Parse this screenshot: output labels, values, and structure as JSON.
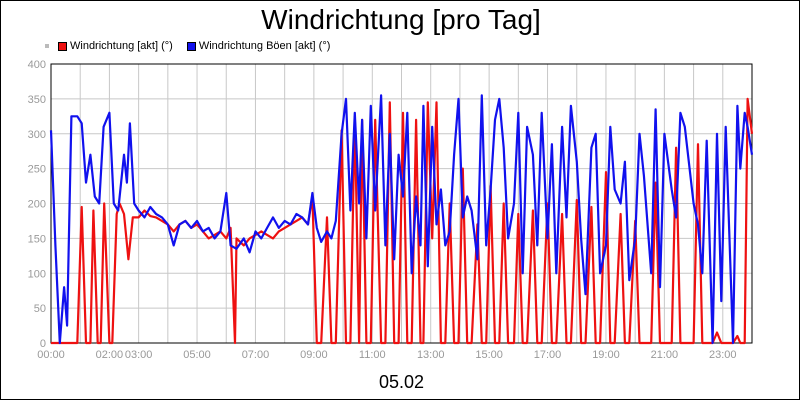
{
  "title": "Windrichtung [pro Tag]",
  "date_label": "05.02",
  "legend": [
    {
      "label": "Windrichtung [akt] (°)",
      "color": "#ee1111"
    },
    {
      "label": "Windrichtung Böen [akt] (°)",
      "color": "#1111ee"
    }
  ],
  "chart_data": {
    "type": "line",
    "title": "Windrichtung [pro Tag]",
    "xlabel": "05.02",
    "ylabel": "",
    "xlim": [
      0,
      24
    ],
    "ylim": [
      0,
      400
    ],
    "x_unit": "hours",
    "grid": true,
    "legend_position": "top-left",
    "y_ticks": [
      0,
      50,
      100,
      150,
      200,
      250,
      300,
      350,
      400
    ],
    "x_ticks": [
      "00:00",
      "02:00",
      "03:00",
      "05:00",
      "07:00",
      "09:00",
      "11:00",
      "13:00",
      "15:00",
      "17:00",
      "19:00",
      "21:00",
      "23:00"
    ],
    "x_tick_hours": [
      0,
      2,
      3,
      5,
      7,
      9,
      11,
      13,
      15,
      17,
      19,
      21,
      23
    ],
    "series": [
      {
        "name": "Windrichtung [akt] (°)",
        "color": "#ee1111",
        "points": [
          [
            0,
            0
          ],
          [
            0.9,
            0
          ],
          [
            1.05,
            195
          ],
          [
            1.2,
            0
          ],
          [
            1.35,
            0
          ],
          [
            1.45,
            190
          ],
          [
            1.6,
            0
          ],
          [
            1.7,
            0
          ],
          [
            1.82,
            200
          ],
          [
            2.0,
            0
          ],
          [
            2.1,
            0
          ],
          [
            2.25,
            185
          ],
          [
            2.35,
            200
          ],
          [
            2.5,
            185
          ],
          [
            2.65,
            120
          ],
          [
            2.8,
            180
          ],
          [
            3.0,
            180
          ],
          [
            3.2,
            190
          ],
          [
            3.4,
            182
          ],
          [
            3.6,
            180
          ],
          [
            3.8,
            175
          ],
          [
            4.0,
            170
          ],
          [
            4.2,
            160
          ],
          [
            4.4,
            170
          ],
          [
            4.6,
            175
          ],
          [
            4.8,
            165
          ],
          [
            5.0,
            170
          ],
          [
            5.2,
            160
          ],
          [
            5.4,
            150
          ],
          [
            5.6,
            155
          ],
          [
            5.8,
            160
          ],
          [
            6.0,
            150
          ],
          [
            6.15,
            165
          ],
          [
            6.3,
            0
          ],
          [
            6.35,
            150
          ],
          [
            6.6,
            140
          ],
          [
            6.8,
            150
          ],
          [
            7.0,
            155
          ],
          [
            7.2,
            160
          ],
          [
            7.4,
            155
          ],
          [
            7.6,
            150
          ],
          [
            7.8,
            160
          ],
          [
            8.0,
            165
          ],
          [
            8.2,
            170
          ],
          [
            8.4,
            175
          ],
          [
            8.6,
            180
          ],
          [
            8.8,
            170
          ],
          [
            8.95,
            210
          ],
          [
            9.1,
            0
          ],
          [
            9.25,
            0
          ],
          [
            9.45,
            180
          ],
          [
            9.6,
            0
          ],
          [
            9.75,
            0
          ],
          [
            9.95,
            305
          ],
          [
            10.1,
            0
          ],
          [
            10.25,
            0
          ],
          [
            10.4,
            325
          ],
          [
            10.55,
            0
          ],
          [
            10.65,
            320
          ],
          [
            10.8,
            0
          ],
          [
            10.95,
            0
          ],
          [
            11.1,
            320
          ],
          [
            11.3,
            0
          ],
          [
            11.45,
            0
          ],
          [
            11.6,
            345
          ],
          [
            11.75,
            0
          ],
          [
            11.9,
            0
          ],
          [
            12.05,
            330
          ],
          [
            12.2,
            0
          ],
          [
            12.35,
            0
          ],
          [
            12.5,
            320
          ],
          [
            12.65,
            0
          ],
          [
            12.75,
            0
          ],
          [
            12.9,
            345
          ],
          [
            13.05,
            150
          ],
          [
            13.2,
            345
          ],
          [
            13.35,
            0
          ],
          [
            13.5,
            0
          ],
          [
            13.65,
            200
          ],
          [
            13.8,
            0
          ],
          [
            13.95,
            0
          ],
          [
            14.1,
            250
          ],
          [
            14.25,
            0
          ],
          [
            14.4,
            0
          ],
          [
            14.6,
            170
          ],
          [
            14.75,
            0
          ],
          [
            14.9,
            0
          ],
          [
            15.05,
            225
          ],
          [
            15.2,
            0
          ],
          [
            15.35,
            0
          ],
          [
            15.5,
            200
          ],
          [
            15.65,
            0
          ],
          [
            15.85,
            0
          ],
          [
            16.0,
            185
          ],
          [
            16.15,
            0
          ],
          [
            16.3,
            0
          ],
          [
            16.5,
            190
          ],
          [
            16.65,
            0
          ],
          [
            16.8,
            0
          ],
          [
            17.0,
            200
          ],
          [
            17.15,
            0
          ],
          [
            17.3,
            0
          ],
          [
            17.5,
            185
          ],
          [
            17.65,
            0
          ],
          [
            17.8,
            0
          ],
          [
            18.0,
            205
          ],
          [
            18.15,
            0
          ],
          [
            18.3,
            0
          ],
          [
            18.5,
            195
          ],
          [
            18.65,
            0
          ],
          [
            18.8,
            0
          ],
          [
            19.0,
            245
          ],
          [
            19.15,
            0
          ],
          [
            19.3,
            0
          ],
          [
            19.5,
            185
          ],
          [
            19.65,
            0
          ],
          [
            19.8,
            0
          ],
          [
            20.0,
            175
          ],
          [
            20.15,
            0
          ],
          [
            20.3,
            0
          ],
          [
            20.55,
            0
          ],
          [
            20.7,
            230
          ],
          [
            20.85,
            0
          ],
          [
            21.0,
            0
          ],
          [
            21.25,
            0
          ],
          [
            21.4,
            280
          ],
          [
            21.55,
            0
          ],
          [
            21.7,
            0
          ],
          [
            22.0,
            0
          ],
          [
            22.15,
            285
          ],
          [
            22.3,
            0
          ],
          [
            22.45,
            0
          ],
          [
            22.65,
            0
          ],
          [
            22.8,
            15
          ],
          [
            22.95,
            0
          ],
          [
            23.1,
            0
          ],
          [
            23.35,
            0
          ],
          [
            23.5,
            10
          ],
          [
            23.6,
            0
          ],
          [
            23.75,
            0
          ],
          [
            23.85,
            350
          ],
          [
            24.0,
            300
          ]
        ]
      },
      {
        "name": "Windrichtung Böen [akt] (°)",
        "color": "#1111ee",
        "points": [
          [
            0,
            305
          ],
          [
            0.15,
            140
          ],
          [
            0.3,
            0
          ],
          [
            0.45,
            80
          ],
          [
            0.55,
            25
          ],
          [
            0.7,
            325
          ],
          [
            0.9,
            325
          ],
          [
            1.05,
            315
          ],
          [
            1.2,
            230
          ],
          [
            1.35,
            270
          ],
          [
            1.5,
            210
          ],
          [
            1.65,
            200
          ],
          [
            1.8,
            310
          ],
          [
            2.0,
            330
          ],
          [
            2.15,
            200
          ],
          [
            2.3,
            190
          ],
          [
            2.5,
            270
          ],
          [
            2.6,
            230
          ],
          [
            2.7,
            315
          ],
          [
            2.85,
            200
          ],
          [
            3.0,
            190
          ],
          [
            3.2,
            180
          ],
          [
            3.4,
            195
          ],
          [
            3.6,
            185
          ],
          [
            3.8,
            180
          ],
          [
            4.0,
            170
          ],
          [
            4.2,
            140
          ],
          [
            4.4,
            170
          ],
          [
            4.6,
            175
          ],
          [
            4.8,
            165
          ],
          [
            5.0,
            175
          ],
          [
            5.2,
            160
          ],
          [
            5.4,
            165
          ],
          [
            5.6,
            150
          ],
          [
            5.8,
            160
          ],
          [
            6.0,
            215
          ],
          [
            6.15,
            140
          ],
          [
            6.35,
            135
          ],
          [
            6.6,
            150
          ],
          [
            6.8,
            130
          ],
          [
            7.0,
            160
          ],
          [
            7.2,
            150
          ],
          [
            7.4,
            165
          ],
          [
            7.6,
            180
          ],
          [
            7.8,
            165
          ],
          [
            8.0,
            175
          ],
          [
            8.2,
            170
          ],
          [
            8.4,
            185
          ],
          [
            8.6,
            180
          ],
          [
            8.8,
            170
          ],
          [
            8.95,
            215
          ],
          [
            9.1,
            165
          ],
          [
            9.25,
            145
          ],
          [
            9.45,
            160
          ],
          [
            9.6,
            150
          ],
          [
            9.75,
            175
          ],
          [
            9.95,
            300
          ],
          [
            10.1,
            350
          ],
          [
            10.25,
            190
          ],
          [
            10.4,
            330
          ],
          [
            10.55,
            200
          ],
          [
            10.65,
            320
          ],
          [
            10.8,
            150
          ],
          [
            10.95,
            340
          ],
          [
            11.1,
            190
          ],
          [
            11.3,
            355
          ],
          [
            11.45,
            140
          ],
          [
            11.6,
            300
          ],
          [
            11.75,
            120
          ],
          [
            11.9,
            270
          ],
          [
            12.05,
            210
          ],
          [
            12.2,
            330
          ],
          [
            12.35,
            100
          ],
          [
            12.5,
            210
          ],
          [
            12.65,
            140
          ],
          [
            12.75,
            340
          ],
          [
            12.9,
            110
          ],
          [
            13.05,
            310
          ],
          [
            13.2,
            170
          ],
          [
            13.35,
            220
          ],
          [
            13.5,
            140
          ],
          [
            13.65,
            160
          ],
          [
            13.8,
            270
          ],
          [
            13.95,
            350
          ],
          [
            14.1,
            180
          ],
          [
            14.25,
            210
          ],
          [
            14.4,
            190
          ],
          [
            14.6,
            120
          ],
          [
            14.75,
            355
          ],
          [
            14.9,
            140
          ],
          [
            15.05,
            220
          ],
          [
            15.2,
            320
          ],
          [
            15.35,
            350
          ],
          [
            15.5,
            280
          ],
          [
            15.65,
            150
          ],
          [
            15.85,
            200
          ],
          [
            16.0,
            330
          ],
          [
            16.15,
            100
          ],
          [
            16.3,
            310
          ],
          [
            16.5,
            270
          ],
          [
            16.65,
            140
          ],
          [
            16.8,
            330
          ],
          [
            17.0,
            150
          ],
          [
            17.15,
            285
          ],
          [
            17.3,
            100
          ],
          [
            17.5,
            310
          ],
          [
            17.65,
            180
          ],
          [
            17.8,
            340
          ],
          [
            18.0,
            260
          ],
          [
            18.15,
            150
          ],
          [
            18.3,
            70
          ],
          [
            18.5,
            280
          ],
          [
            18.65,
            300
          ],
          [
            18.8,
            100
          ],
          [
            19.0,
            140
          ],
          [
            19.15,
            310
          ],
          [
            19.3,
            220
          ],
          [
            19.5,
            200
          ],
          [
            19.65,
            260
          ],
          [
            19.8,
            90
          ],
          [
            20.0,
            150
          ],
          [
            20.15,
            300
          ],
          [
            20.3,
            240
          ],
          [
            20.55,
            100
          ],
          [
            20.7,
            335
          ],
          [
            20.85,
            80
          ],
          [
            21.0,
            300
          ],
          [
            21.25,
            220
          ],
          [
            21.4,
            180
          ],
          [
            21.55,
            330
          ],
          [
            21.7,
            310
          ],
          [
            22.0,
            200
          ],
          [
            22.15,
            170
          ],
          [
            22.3,
            100
          ],
          [
            22.45,
            290
          ],
          [
            22.65,
            0
          ],
          [
            22.8,
            300
          ],
          [
            22.95,
            60
          ],
          [
            23.1,
            310
          ],
          [
            23.35,
            0
          ],
          [
            23.5,
            340
          ],
          [
            23.6,
            250
          ],
          [
            23.75,
            330
          ],
          [
            23.85,
            310
          ],
          [
            24.0,
            270
          ]
        ]
      }
    ]
  }
}
